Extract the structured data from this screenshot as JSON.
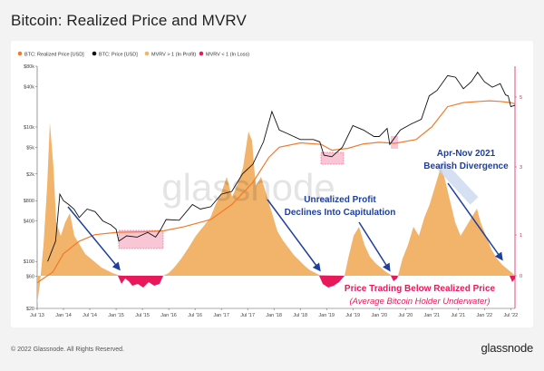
{
  "title": "Bitcoin: Realized Price and MVRV",
  "footer": {
    "copyright": "© 2022 Glassnode. All Rights Reserved.",
    "logo": "glassnode"
  },
  "watermark": "glassnode",
  "colors": {
    "realized_price": "#f07b2a",
    "price": "#111111",
    "mvrv_profit": "#f2b36b",
    "mvrv_loss": "#e8195a",
    "annotation_blue": "#1f3f9e",
    "annotation_red": "#e8195a",
    "right_axis": "#e8195a"
  },
  "chart_data": {
    "type": "line",
    "title": "Bitcoin: Realized Price and MVRV",
    "legend_position": "top-left",
    "legend": [
      {
        "label": "BTC: Realized Price [USD]",
        "key": "realized_price"
      },
      {
        "label": "BTC: Price [USD]",
        "key": "price"
      },
      {
        "label": "MVRV > 1 (In Profit)",
        "key": "mvrv_profit"
      },
      {
        "label": "MVRV < 1 (In Loss)",
        "key": "mvrv_loss"
      }
    ],
    "x_ticks": [
      "Jul '13",
      "Jan '14",
      "Jul '14",
      "Jan '15",
      "Jul '15",
      "Jan '16",
      "Jul '16",
      "Jan '17",
      "Jul '17",
      "Jan '18",
      "Jul '18",
      "Jan '19",
      "Jul '19",
      "Jan '20",
      "Jul '20",
      "Jan '21",
      "Jul '21",
      "Jan '22",
      "Jul '22"
    ],
    "x_range": [
      2013.5,
      2022.58
    ],
    "y_left": {
      "scale": "log",
      "range": [
        20,
        80000
      ],
      "ticks": [
        {
          "v": 80000,
          "label": "$80k"
        },
        {
          "v": 40000,
          "label": "$40k"
        },
        {
          "v": 10000,
          "label": "$10k"
        },
        {
          "v": 5000,
          "label": "$5k"
        },
        {
          "v": 2000,
          "label": "$2k"
        },
        {
          "v": 800,
          "label": "$800"
        },
        {
          "v": 400,
          "label": "$400"
        },
        {
          "v": 100,
          "label": "$100"
        },
        {
          "v": 60,
          "label": "$60"
        },
        {
          "v": 20,
          "label": "$20"
        }
      ]
    },
    "y_right": {
      "ticks": [
        "5",
        "3",
        "1",
        "0"
      ]
    },
    "series": [
      {
        "name": "BTC: Realized Price [USD]",
        "x": [
          2013.5,
          2013.8,
          2014.0,
          2014.3,
          2014.6,
          2015.0,
          2015.5,
          2015.9,
          2016.3,
          2016.8,
          2017.2,
          2017.6,
          2017.9,
          2018.1,
          2018.5,
          2018.9,
          2019.1,
          2019.4,
          2019.7,
          2020.0,
          2020.3,
          2020.7,
          2021.0,
          2021.3,
          2021.6,
          2021.9,
          2022.1,
          2022.3,
          2022.5,
          2022.58
        ],
        "y": [
          48,
          70,
          130,
          200,
          250,
          270,
          275,
          285,
          330,
          420,
          700,
          1500,
          3500,
          5000,
          5800,
          5500,
          4500,
          4800,
          5600,
          5900,
          5700,
          6500,
          10000,
          20000,
          23000,
          24000,
          24500,
          24000,
          23000,
          22000
        ]
      },
      {
        "name": "BTC: Price [USD]",
        "x": [
          2013.7,
          2013.85,
          2013.93,
          2014.0,
          2014.1,
          2014.2,
          2014.3,
          2014.45,
          2014.6,
          2014.75,
          2014.9,
          2015.0,
          2015.05,
          2015.2,
          2015.4,
          2015.6,
          2015.75,
          2015.85,
          2015.95,
          2016.2,
          2016.45,
          2016.6,
          2016.8,
          2017.0,
          2017.2,
          2017.4,
          2017.6,
          2017.8,
          2017.96,
          2018.1,
          2018.25,
          2018.5,
          2018.75,
          2018.87,
          2018.95,
          2019.1,
          2019.3,
          2019.5,
          2019.7,
          2019.9,
          2020.0,
          2020.15,
          2020.2,
          2020.4,
          2020.6,
          2020.8,
          2020.95,
          2021.1,
          2021.3,
          2021.45,
          2021.6,
          2021.75,
          2021.87,
          2022.0,
          2022.15,
          2022.3,
          2022.4,
          2022.45,
          2022.5,
          2022.58
        ],
        "y": [
          100,
          200,
          1000,
          800,
          700,
          600,
          450,
          600,
          550,
          400,
          350,
          300,
          200,
          240,
          230,
          270,
          230,
          300,
          420,
          410,
          700,
          600,
          650,
          1000,
          1100,
          2000,
          2800,
          6000,
          17000,
          9000,
          8000,
          6500,
          6500,
          6000,
          3800,
          3600,
          5000,
          10500,
          9000,
          7200,
          7200,
          9500,
          5500,
          9000,
          11000,
          13000,
          29000,
          35000,
          58000,
          55000,
          37000,
          47000,
          65000,
          47000,
          39000,
          44000,
          30000,
          29000,
          20000,
          21000
        ]
      },
      {
        "name": "MVRV > 1 (In Profit)",
        "representation": "filled area on right axis, value > 1"
      },
      {
        "name": "MVRV < 1 (In Loss)",
        "representation": "filled area on right axis, value < 1"
      }
    ],
    "annotations": [
      {
        "text": "Unrealized Profit",
        "color": "blue"
      },
      {
        "text": "Declines Into Capitulation",
        "color": "blue"
      },
      {
        "text": "Apr-Nov 2021",
        "color": "blue"
      },
      {
        "text": "Bearish Divergence",
        "color": "blue"
      },
      {
        "text": "Price Trading Below Realized Price",
        "color": "red"
      },
      {
        "text": "(Average Bitcoin Holder Underwater)",
        "color": "red"
      }
    ]
  }
}
